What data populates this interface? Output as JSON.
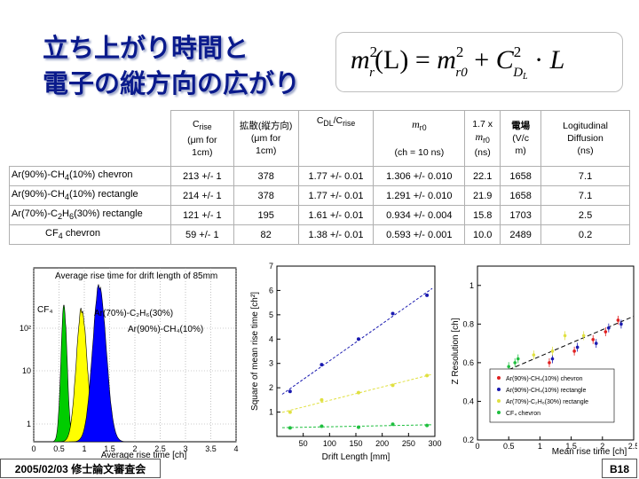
{
  "slide": {
    "title_line1": "立ち上がり時間と",
    "title_line2": "電子の縦方向の広がり",
    "formula": {
      "lhs_base": "m",
      "lhs_sup": "2",
      "lhs_sub": "r",
      "lhs_arg": "(L)",
      "eq": "=",
      "m_base": "m",
      "m_sup": "2",
      "m_sub": "r0",
      "plus": "+",
      "c_base": "C",
      "c_sup": "2",
      "c_sub": "D",
      "c_subsub": "L",
      "dot": "·",
      "L": "L"
    },
    "footer_date": "2005/02/03 修士論文審査会",
    "footer_page": "B18"
  },
  "table": {
    "headers": [
      {
        "l1": "C",
        "l1sub": "rise",
        "l2": "(μm for",
        "l3": "1cm)"
      },
      {
        "l1": "拡散(縦方向)",
        "l2": "(μm for",
        "l3": "1cm)"
      },
      {
        "l1": "C",
        "l1sub": "DL",
        "l1b": "/C",
        "l1bsub": "rise"
      },
      {
        "l1": "m",
        "l1sub": "r0",
        "l2": "(ch = 10 ns)"
      },
      {
        "l1": "1.7 x",
        "l2": "m",
        "l2sub": "r0",
        "l3": "(ns)"
      },
      {
        "l1": "電場",
        "l2": "(V/c",
        "l3": "m)"
      },
      {
        "l1": "Logitudinal",
        "l2": "Diffusion",
        "l3": "(ns)"
      }
    ],
    "rows": [
      {
        "name_a": "Ar(90%)-CH",
        "name_s1": "4",
        "name_b": "(10%) chevron",
        "name_s2": "",
        "name_c": "",
        "cells": [
          "213 +/- 1",
          "378",
          "1.77 +/- 0.01",
          "1.306 +/- 0.010",
          "22.1",
          "1658",
          "7.1"
        ]
      },
      {
        "name_a": "Ar(90%)-CH",
        "name_s1": "4",
        "name_b": "(10%) rectangle",
        "name_s2": "",
        "name_c": "",
        "cells": [
          "214 +/- 1",
          "378",
          "1.77 +/- 0.01",
          "1.291 +/- 0.010",
          "21.9",
          "1658",
          "7.1"
        ]
      },
      {
        "name_a": "Ar(70%)-C",
        "name_s1": "2",
        "name_b": "H",
        "name_s2": "6",
        "name_c": "(30%) rectangle",
        "cells": [
          "121 +/- 1",
          "195",
          "1.61 +/- 0.01",
          "0.934 +/- 0.004",
          "15.8",
          "1703",
          "2.5"
        ]
      },
      {
        "name_a": "CF",
        "name_s1": "4",
        "name_b": " chevron",
        "name_s2": "",
        "name_c": "",
        "cells": [
          "59 +/- 1",
          "82",
          "1.38 +/- 0.01",
          "0.593 +/- 0.001",
          "10.0",
          "2489",
          "0.2"
        ]
      }
    ]
  },
  "chart_data": [
    {
      "type": "histogram",
      "title": "Average rise time for drift length of 85mm",
      "xlabel": "Average rise time [ch]",
      "xlim": [
        0,
        4
      ],
      "xticks": [
        "0",
        "0.5",
        "1",
        "1.5",
        "2",
        "2.5",
        "3",
        "3.5",
        "4"
      ],
      "ylog": true,
      "yticks": [
        "1",
        "10",
        "10²"
      ],
      "series": [
        {
          "name": "CF₄",
          "color": "#00cc00",
          "peak_x": 0.6
        },
        {
          "name": "Ar(70%)-C₂H₆(30%)",
          "color": "#ffff00",
          "peak_x": 0.95
        },
        {
          "name": "Ar(90%)-CH₄(10%)",
          "color": "#0000ff",
          "peak_x": 1.3
        }
      ]
    },
    {
      "type": "scatter",
      "xlabel": "Drift Length [mm]",
      "ylabel": "Square of mean rise time [ch²]",
      "xlim": [
        0,
        300
      ],
      "ylim": [
        0,
        7
      ],
      "xticks": [
        "50",
        "100",
        "150",
        "200",
        "250",
        "300"
      ],
      "yticks": [
        "1",
        "2",
        "3",
        "4",
        "5",
        "6",
        "7"
      ],
      "series": [
        {
          "color": "#1a1ab0",
          "x": [
            25,
            85,
            155,
            220,
            285
          ],
          "y": [
            1.85,
            2.95,
            4.0,
            5.05,
            5.8
          ]
        },
        {
          "color": "#e0e040",
          "x": [
            25,
            85,
            155,
            220,
            285
          ],
          "y": [
            1.0,
            1.5,
            1.8,
            2.1,
            2.5
          ]
        },
        {
          "color": "#1fbf3f",
          "x": [
            25,
            85,
            155,
            220,
            285
          ],
          "y": [
            0.35,
            0.42,
            0.38,
            0.5,
            0.45
          ]
        }
      ]
    },
    {
      "type": "scatter",
      "xlabel": "Mean rise time [ch]",
      "ylabel": "Z Resolution [ch]",
      "xlim": [
        0,
        2.5
      ],
      "ylim": [
        0.2,
        1.1
      ],
      "xticks": [
        "0",
        "0.5",
        "1",
        "1.5",
        "2",
        "2.5"
      ],
      "yticks": [
        "0.2",
        "0.4",
        "0.6",
        "0.8",
        "1"
      ],
      "series": [
        {
          "name": "Ar(90%)-CH₄(10%) chevron",
          "color": "#e02020",
          "x": [
            1.15,
            1.55,
            1.85,
            2.05,
            2.25
          ],
          "y": [
            0.6,
            0.66,
            0.72,
            0.76,
            0.82
          ]
        },
        {
          "name": "Ar(90%)-CH₄(10%) rectangle",
          "color": "#1a1ab0",
          "x": [
            1.2,
            1.6,
            1.9,
            2.1,
            2.3
          ],
          "y": [
            0.62,
            0.68,
            0.7,
            0.78,
            0.8
          ]
        },
        {
          "name": "Ar(70%)-C₂H₆(30%) rectangle",
          "color": "#e0e040",
          "x": [
            0.9,
            1.2,
            1.4,
            1.7
          ],
          "y": [
            0.64,
            0.66,
            0.74,
            0.74
          ]
        },
        {
          "name": "CF₄ chevron",
          "color": "#1fbf3f",
          "x": [
            0.5,
            0.6,
            0.65
          ],
          "y": [
            0.58,
            0.6,
            0.62
          ]
        }
      ]
    }
  ]
}
